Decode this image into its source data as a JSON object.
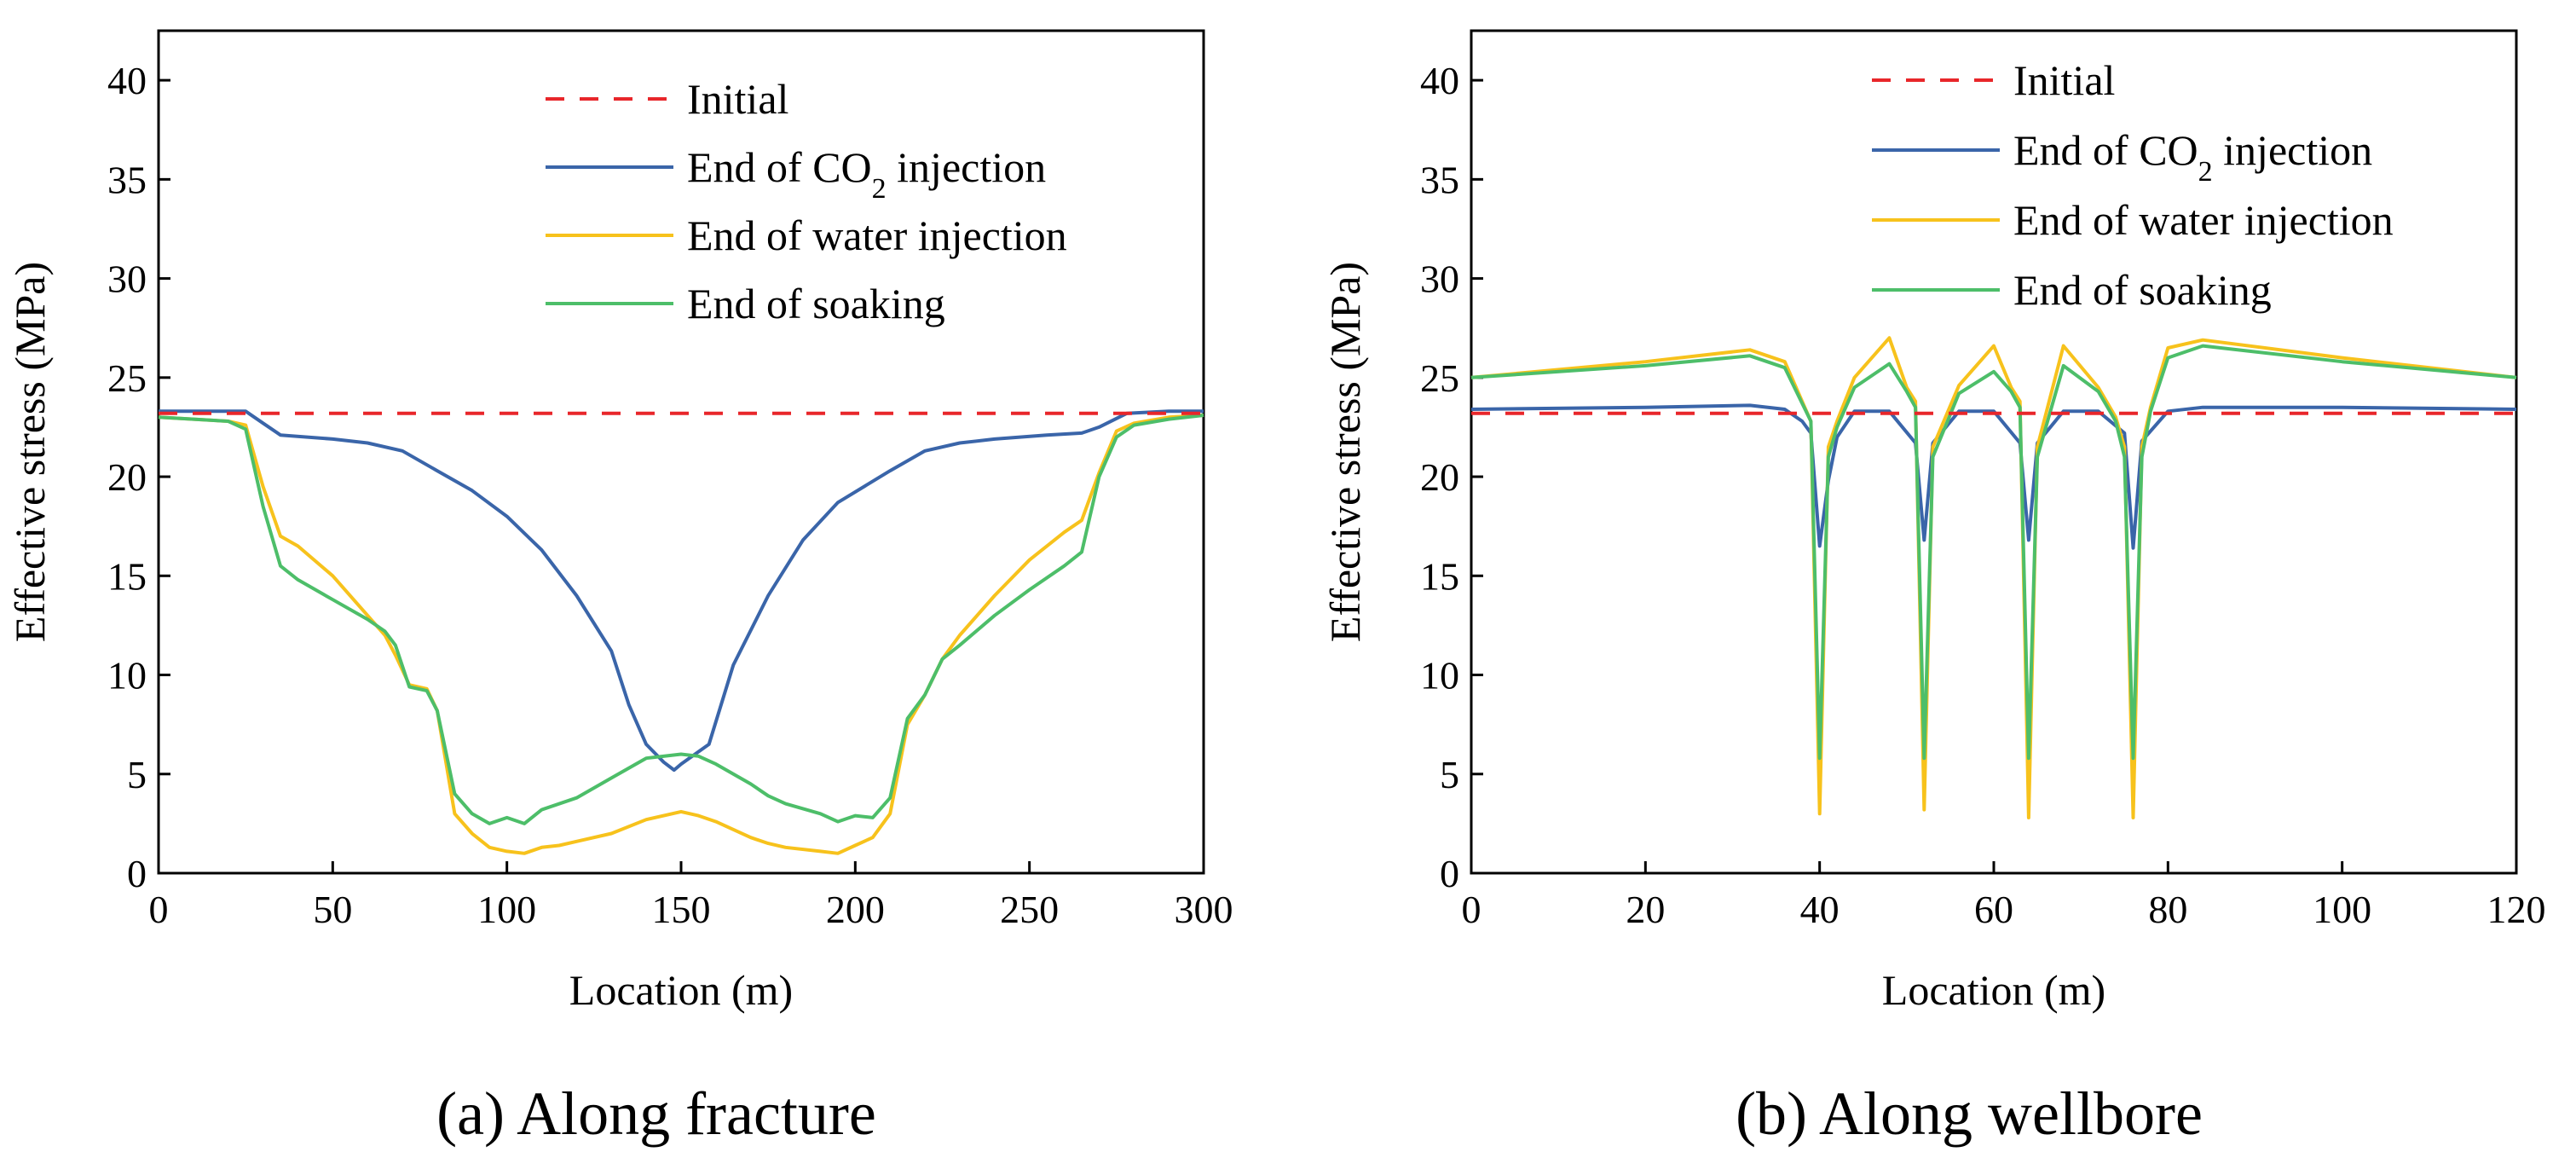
{
  "chart_data": [
    {
      "type": "line",
      "caption": "(a) Along fracture",
      "xlabel": "Location (m)",
      "ylabel": "Effective stress (MPa)",
      "xlim": [
        0,
        300
      ],
      "ylim": [
        0,
        42.5
      ],
      "xticks": [
        0,
        50,
        100,
        150,
        200,
        250,
        300
      ],
      "yticks": [
        0,
        5,
        10,
        15,
        20,
        25,
        30,
        35,
        40
      ],
      "legend_position": "top-right",
      "series": [
        {
          "name": "Initial",
          "color": "#e8262a",
          "dash": true,
          "x": [
            0,
            300
          ],
          "y": [
            23.2,
            23.2
          ]
        },
        {
          "name": "End of CO",
          "subscript": "2",
          "name_suffix": " injection",
          "color": "#3a65a9",
          "dash": false,
          "x": [
            0,
            25,
            30,
            35,
            50,
            60,
            70,
            80,
            90,
            100,
            110,
            120,
            130,
            135,
            140,
            145,
            148,
            150,
            158,
            165,
            175,
            185,
            195,
            210,
            220,
            230,
            240,
            255,
            265,
            270,
            278,
            290,
            300
          ],
          "y": [
            23.3,
            23.3,
            22.7,
            22.1,
            21.9,
            21.7,
            21.3,
            20.3,
            19.3,
            18.0,
            16.3,
            14.0,
            11.2,
            8.5,
            6.5,
            5.6,
            5.2,
            5.5,
            6.5,
            10.5,
            14.0,
            16.8,
            18.7,
            20.3,
            21.3,
            21.7,
            21.9,
            22.1,
            22.2,
            22.5,
            23.2,
            23.3,
            23.3
          ]
        },
        {
          "name": "End of water injection",
          "color": "#f7c21c",
          "dash": false,
          "x": [
            0,
            20,
            25,
            30,
            35,
            40,
            50,
            60,
            65,
            68,
            72,
            77,
            80,
            85,
            90,
            95,
            100,
            105,
            110,
            115,
            120,
            130,
            140,
            150,
            155,
            160,
            170,
            175,
            180,
            190,
            195,
            200,
            205,
            210,
            215,
            220,
            225,
            230,
            240,
            250,
            260,
            265,
            270,
            275,
            280,
            290,
            300
          ],
          "y": [
            23.0,
            22.8,
            22.6,
            19.5,
            17.0,
            16.5,
            15.0,
            13.0,
            12.0,
            11.0,
            9.5,
            9.3,
            8.2,
            3.0,
            2.0,
            1.3,
            1.1,
            1.0,
            1.3,
            1.4,
            1.6,
            2.0,
            2.7,
            3.1,
            2.9,
            2.6,
            1.8,
            1.5,
            1.3,
            1.1,
            1.0,
            1.4,
            1.8,
            3.0,
            7.5,
            9.0,
            10.8,
            12.0,
            14.0,
            15.8,
            17.2,
            17.8,
            20.2,
            22.3,
            22.7,
            23.0,
            23.1
          ]
        },
        {
          "name": "End of soaking",
          "color": "#4dbe69",
          "dash": false,
          "x": [
            0,
            20,
            25,
            30,
            35,
            40,
            50,
            60,
            65,
            68,
            72,
            77,
            80,
            85,
            90,
            95,
            100,
            105,
            110,
            120,
            130,
            140,
            150,
            155,
            160,
            170,
            175,
            180,
            190,
            195,
            200,
            205,
            210,
            215,
            220,
            225,
            230,
            240,
            250,
            260,
            265,
            270,
            275,
            280,
            290,
            300
          ],
          "y": [
            23.0,
            22.8,
            22.4,
            18.5,
            15.5,
            14.8,
            13.8,
            12.8,
            12.2,
            11.5,
            9.4,
            9.2,
            8.2,
            4.0,
            3.0,
            2.5,
            2.8,
            2.5,
            3.2,
            3.8,
            4.8,
            5.8,
            6.0,
            5.9,
            5.5,
            4.5,
            3.9,
            3.5,
            3.0,
            2.6,
            2.9,
            2.8,
            3.8,
            7.8,
            9.0,
            10.8,
            11.5,
            13.0,
            14.3,
            15.5,
            16.2,
            20.0,
            22.0,
            22.6,
            22.9,
            23.1
          ]
        }
      ]
    },
    {
      "type": "line",
      "caption": "(b) Along wellbore",
      "xlabel": "Location (m)",
      "ylabel": "Effective stress (MPa)",
      "xlim": [
        0,
        120
      ],
      "ylim": [
        0,
        42.5
      ],
      "xticks": [
        0,
        20,
        40,
        60,
        80,
        100,
        120
      ],
      "yticks": [
        0,
        5,
        10,
        15,
        20,
        25,
        30,
        35,
        40
      ],
      "legend_position": "top-right",
      "series": [
        {
          "name": "Initial",
          "color": "#e8262a",
          "dash": true,
          "x": [
            0,
            120
          ],
          "y": [
            23.2,
            23.2
          ]
        },
        {
          "name": "End of CO",
          "subscript": "2",
          "name_suffix": " injection",
          "color": "#3a65a9",
          "dash": false,
          "x": [
            0,
            20,
            32,
            36,
            38,
            39,
            40,
            41,
            42,
            44,
            48,
            51,
            52,
            53,
            56,
            60,
            63,
            64,
            65,
            68,
            72,
            75,
            76,
            77,
            78,
            80,
            84,
            100,
            120
          ],
          "y": [
            23.4,
            23.5,
            23.6,
            23.4,
            22.8,
            22.2,
            16.5,
            19.8,
            22.0,
            23.3,
            23.3,
            21.7,
            16.8,
            21.7,
            23.3,
            23.3,
            21.7,
            16.8,
            21.7,
            23.3,
            23.3,
            22.2,
            16.4,
            21.8,
            22.3,
            23.3,
            23.5,
            23.5,
            23.4
          ]
        },
        {
          "name": "End of water injection",
          "color": "#f7c21c",
          "dash": false,
          "x": [
            0,
            20,
            32,
            36,
            39,
            40,
            41,
            42,
            44,
            48,
            50,
            51,
            52,
            53,
            56,
            60,
            62,
            63,
            64,
            65,
            68,
            72,
            74,
            75,
            76,
            77,
            78,
            80,
            84,
            100,
            120
          ],
          "y": [
            25.0,
            25.8,
            26.4,
            25.8,
            22.8,
            3.0,
            21.5,
            22.8,
            25.0,
            27.0,
            24.5,
            23.8,
            3.2,
            21.5,
            24.6,
            26.6,
            24.5,
            23.8,
            2.8,
            21.5,
            26.6,
            24.5,
            23.0,
            21.5,
            2.8,
            21.5,
            23.5,
            26.5,
            26.9,
            26.0,
            25.0
          ]
        },
        {
          "name": "End of soaking",
          "color": "#4dbe69",
          "dash": false,
          "x": [
            0,
            20,
            32,
            36,
            39,
            40,
            41,
            42,
            44,
            48,
            50,
            51,
            52,
            53,
            56,
            60,
            62,
            63,
            64,
            65,
            68,
            72,
            74,
            75,
            76,
            77,
            78,
            80,
            84,
            100,
            120
          ],
          "y": [
            25.0,
            25.6,
            26.1,
            25.5,
            22.8,
            5.8,
            21.0,
            22.5,
            24.5,
            25.7,
            24.3,
            23.5,
            5.8,
            21.0,
            24.2,
            25.3,
            24.3,
            23.5,
            5.8,
            21.0,
            25.6,
            24.3,
            22.8,
            21.0,
            5.8,
            21.0,
            23.3,
            26.0,
            26.6,
            25.8,
            25.0
          ]
        }
      ]
    }
  ]
}
